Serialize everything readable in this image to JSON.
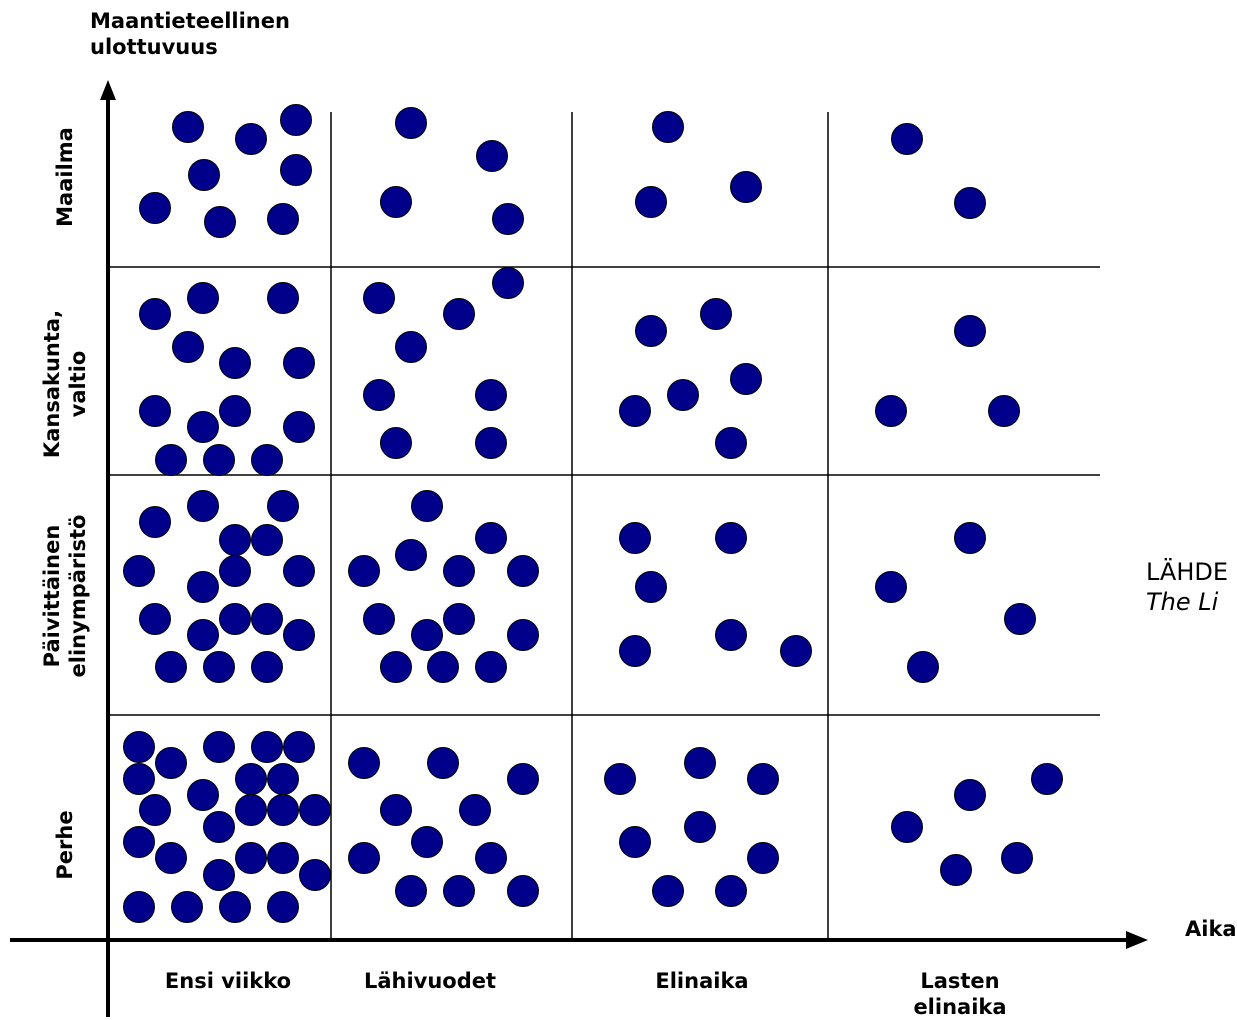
{
  "diagram": {
    "y_axis_title": "Maantieteellinen\nulottuvuus",
    "x_axis_title": "Aika",
    "columns": [
      "Ensi viikko",
      "Lähivuodet",
      "Elinaika",
      "Lasten\nelinaika"
    ],
    "rows": [
      "Maailma",
      "Kansakunta,\nvaltio",
      "Päivittäinen\nelinympäristö",
      "Perhe"
    ],
    "dot_color": "#00008B",
    "dot_counts": {
      "Maailma": [
        8,
        4,
        3,
        2
      ],
      "Kansakunta, valtio": [
        14,
        8,
        7,
        3
      ],
      "Päivittäinen elinympäristö": [
        19,
        13,
        6,
        5
      ],
      "Perhe": [
        28,
        11,
        9,
        6
      ]
    },
    "source_label": "LÄHDE",
    "source_ref": "The Li"
  }
}
